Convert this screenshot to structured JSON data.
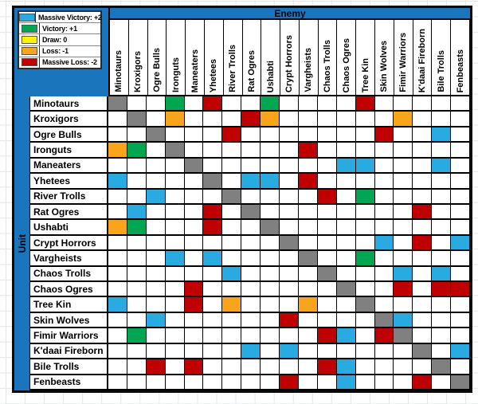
{
  "axes": {
    "column_header": "Enemy",
    "row_header": "Unit"
  },
  "units": [
    "Minotaurs",
    "Kroxigors",
    "Ogre Bulls",
    "Ironguts",
    "Maneaters",
    "Yhetees",
    "River Trolls",
    "Rat Ogres",
    "Ushabti",
    "Crypt Horrors",
    "Vargheists",
    "Chaos Trolls",
    "Chaos Ogres",
    "Tree Kin",
    "Skin Wolves",
    "Fimir Warriors",
    "K'daai Fireborn",
    "Bile Trolls",
    "Fenbeasts"
  ],
  "legend": {
    "items": [
      {
        "label": "Massive Victory: +2",
        "color": "#29abe2"
      },
      {
        "label": "Victory: +1",
        "color": "#00a651"
      },
      {
        "label": "Draw: 0",
        "color": "#fff200"
      },
      {
        "label": "Loss: -1",
        "color": "#f9a51b"
      },
      {
        "label": "Massive Loss: -2",
        "color": "#c00000"
      }
    ]
  },
  "matrix": {
    "encoding": {
      "B": "Massive Victory: +2",
      "V": "Victory: +1",
      "Y": "Draw: 0",
      "O": "Loss: -1",
      "R": "Massive Loss: -2",
      "G": "mirror match (gray)",
      ".": "blank"
    },
    "rows": [
      "G..V.R..V....R.....",
      ".G.O...RO......O...",
      "..G...R.......R..B.",
      "OV.G......R........",
      "....G.......BB...B.",
      "B....G.BB.R........",
      "..B...G....R.V.....",
      ".B...R.G........R..",
      "OV...R..G..........",
      ".........G....B.R.B",
      "...B.B....G..V.....",
      "......B....G...B.B.",
      "....R.......G..R.RR",
      "B...R.O...O..G.....",
      "..B......R....GB...",
      ".V.........RB.RG...",
      ".......B.B......G.B",
      "..R.R......RB....G.",
      ".........R..B...R.G"
    ]
  },
  "colors": {
    "header_blue": "#1b75bc",
    "massive_victory": "#29abe2",
    "victory": "#00a651",
    "draw": "#fff200",
    "loss": "#f9a51b",
    "massive_loss": "#c00000",
    "self_gray": "#808080",
    "cell_border": "#000000",
    "gridline": "#e2e6ea"
  }
}
